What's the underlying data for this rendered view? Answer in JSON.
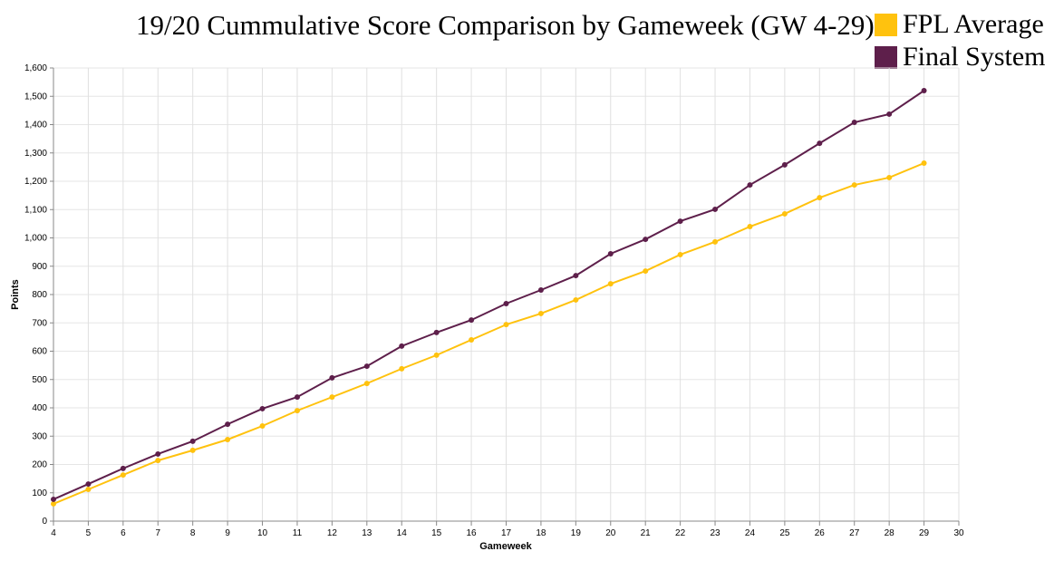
{
  "chart_data": {
    "type": "line",
    "title": "19/20 Cummulative Score Comparison by Gameweek (GW 4-29)",
    "xlabel": "Gameweek",
    "ylabel": "Points",
    "xlim": [
      4,
      30
    ],
    "ylim": [
      0,
      1600
    ],
    "xticks": [
      4,
      5,
      6,
      7,
      8,
      9,
      10,
      11,
      12,
      13,
      14,
      15,
      16,
      17,
      18,
      19,
      20,
      21,
      22,
      23,
      24,
      25,
      26,
      27,
      28,
      29,
      30
    ],
    "yticks": [
      "0",
      "100",
      "200",
      "300",
      "400",
      "500",
      "600",
      "700",
      "800",
      "900",
      "1,000",
      "1,100",
      "1,200",
      "1,300",
      "1,400",
      "1,500",
      "1,600"
    ],
    "grid": true,
    "legend": "top-right",
    "x": [
      4,
      5,
      6,
      7,
      8,
      9,
      10,
      11,
      12,
      13,
      14,
      15,
      16,
      17,
      18,
      19,
      20,
      21,
      22,
      23,
      24,
      25,
      26,
      27,
      28,
      29
    ],
    "series": [
      {
        "name": "FPL Average",
        "color": "#FFC20E",
        "values": [
          61,
          112,
          163,
          214,
          250,
          288,
          336,
          390,
          438,
          486,
          538,
          586,
          640,
          694,
          733,
          781,
          838,
          883,
          941,
          986,
          1040,
          1085,
          1142,
          1187,
          1213,
          1264
        ]
      },
      {
        "name": "Final System",
        "color": "#5E1F4B",
        "values": [
          77,
          131,
          186,
          237,
          282,
          342,
          397,
          438,
          506,
          547,
          618,
          666,
          710,
          768,
          816,
          867,
          944,
          995,
          1059,
          1101,
          1187,
          1258,
          1334,
          1408,
          1437,
          1520
        ]
      }
    ]
  }
}
